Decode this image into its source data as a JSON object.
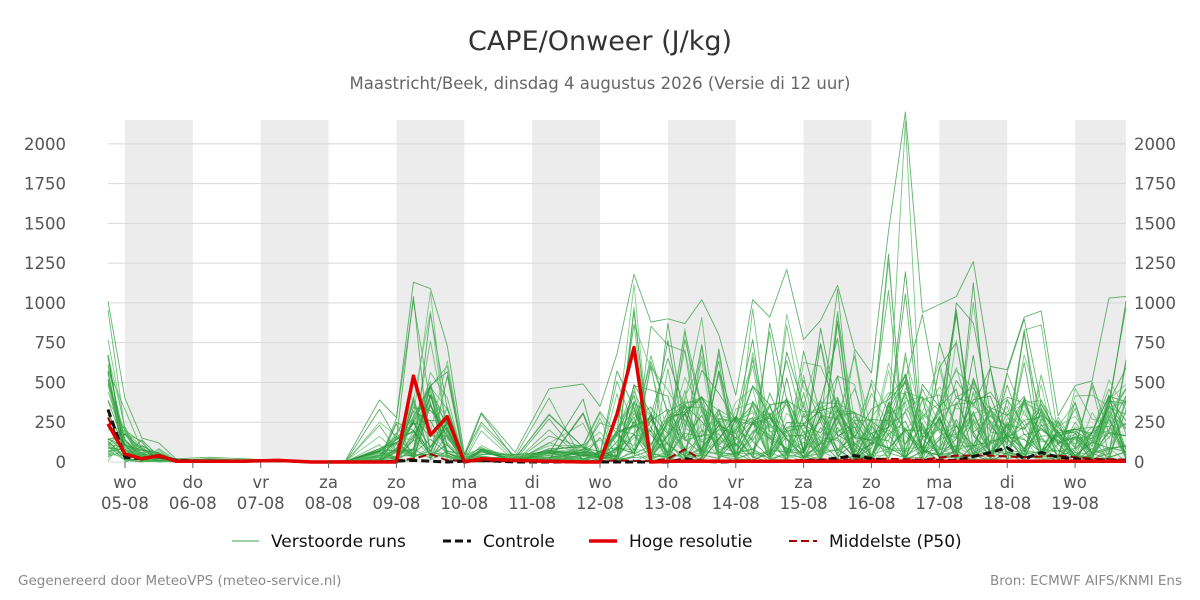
{
  "chart_data": {
    "type": "line",
    "title": "CAPE/Onweer (J/kg)",
    "subtitle": "Maastricht/Beek, dinsdag  4 augustus 2026 (Versie di 12 uur)",
    "ylim": [
      0,
      2200
    ],
    "yticks": [
      0,
      250,
      500,
      750,
      1000,
      1250,
      1500,
      1750,
      2000
    ],
    "x_range_days": [
      0,
      15
    ],
    "x_tick_days": [
      0.25,
      1.25,
      2.25,
      3.25,
      4.25,
      5.25,
      6.25,
      7.25,
      8.25,
      9.25,
      10.25,
      11.25,
      12.25,
      13.25,
      14.25
    ],
    "x_tick_weekdays": [
      "wo",
      "do",
      "vr",
      "za",
      "zo",
      "ma",
      "di",
      "wo",
      "do",
      "vr",
      "za",
      "zo",
      "ma",
      "di",
      "wo"
    ],
    "x_tick_dates": [
      "05-08",
      "06-08",
      "07-08",
      "08-08",
      "09-08",
      "10-08",
      "11-08",
      "12-08",
      "13-08",
      "14-08",
      "15-08",
      "16-08",
      "17-08",
      "18-08",
      "19-08"
    ],
    "shaded_day_ranges": [
      [
        0.25,
        1.25
      ],
      [
        2.25,
        3.25
      ],
      [
        4.25,
        5.25
      ],
      [
        6.25,
        7.25
      ],
      [
        8.25,
        9.25
      ],
      [
        10.25,
        11.25
      ],
      [
        12.25,
        13.25
      ],
      [
        14.25,
        15
      ]
    ],
    "grid": true,
    "legend": {
      "position": "bottom",
      "entries": [
        {
          "label": "Verstoorde runs",
          "color": "#3aa648",
          "style": "thin-solid"
        },
        {
          "label": "Controle",
          "color": "#111111",
          "style": "dashed"
        },
        {
          "label": "Hoge resolutie",
          "color": "#e00000",
          "style": "thick-solid"
        },
        {
          "label": "Middelste (P50)",
          "color": "#a00000",
          "style": "dashed"
        }
      ]
    },
    "series": [
      {
        "name": "Hoge resolutie",
        "color": "#e00000",
        "x": [
          0,
          0.25,
          0.5,
          0.75,
          1,
          1.5,
          2,
          2.5,
          3,
          3.5,
          4,
          4.25,
          4.5,
          4.75,
          5,
          5.25,
          5.5,
          6,
          6.5,
          7,
          7.25,
          7.5,
          7.75,
          8,
          8.25,
          8.5,
          9,
          9.5,
          10,
          10.5,
          11,
          11.5,
          12,
          12.5,
          13,
          13.5,
          14,
          14.5,
          15
        ],
        "y": [
          240,
          50,
          20,
          40,
          5,
          5,
          5,
          10,
          0,
          0,
          0,
          0,
          540,
          170,
          285,
          0,
          20,
          10,
          5,
          0,
          0,
          300,
          720,
          0,
          5,
          5,
          5,
          5,
          5,
          5,
          5,
          5,
          5,
          5,
          5,
          5,
          5,
          5,
          5
        ]
      },
      {
        "name": "Controle",
        "color": "#111111",
        "x": [
          0,
          0.25,
          0.5,
          0.75,
          1,
          1.5,
          2,
          2.5,
          3,
          3.5,
          4,
          4.5,
          5,
          5.5,
          6,
          6.5,
          7,
          7.5,
          8,
          8.25,
          8.5,
          8.75,
          9,
          9.5,
          10,
          10.5,
          11,
          11.5,
          12,
          12.5,
          13,
          13.25,
          13.5,
          13.75,
          14,
          14.5,
          15
        ],
        "y": [
          330,
          30,
          20,
          40,
          10,
          5,
          5,
          10,
          0,
          0,
          0,
          10,
          0,
          10,
          0,
          0,
          0,
          0,
          0,
          0,
          20,
          5,
          0,
          5,
          5,
          10,
          40,
          5,
          10,
          10,
          60,
          90,
          20,
          60,
          30,
          10,
          10
        ]
      },
      {
        "name": "Middelste (P50)",
        "color": "#a00000",
        "x": [
          0,
          0.25,
          0.5,
          0.75,
          1,
          1.5,
          2,
          2.5,
          3,
          3.5,
          4,
          4.5,
          4.75,
          5,
          5.5,
          6,
          6.5,
          7,
          7.5,
          8,
          8.25,
          8.5,
          8.75,
          9,
          9.5,
          10,
          10.5,
          11,
          11.5,
          12,
          12.5,
          13,
          13.5,
          14,
          14.5,
          15
        ],
        "y": [
          280,
          40,
          30,
          30,
          10,
          5,
          5,
          5,
          0,
          0,
          0,
          20,
          50,
          10,
          5,
          5,
          0,
          0,
          10,
          5,
          20,
          80,
          10,
          10,
          5,
          10,
          15,
          15,
          20,
          15,
          40,
          40,
          30,
          40,
          20,
          15
        ]
      }
    ],
    "ensemble": {
      "name": "Verstoorde runs",
      "color": "#3aa648",
      "member_count": 50,
      "x": [
        0,
        0.25,
        0.5,
        0.75,
        1,
        1.5,
        2,
        2.5,
        3,
        3.5,
        4,
        4.25,
        4.5,
        4.75,
        5,
        5.25,
        5.5,
        6,
        6.5,
        7,
        7.25,
        7.5,
        7.75,
        8,
        8.25,
        8.5,
        8.75,
        9,
        9.25,
        9.5,
        9.75,
        10,
        10.25,
        10.5,
        10.75,
        11,
        11.25,
        11.5,
        11.75,
        12,
        12.25,
        12.5,
        12.75,
        13,
        13.25,
        13.5,
        13.75,
        14,
        14.25,
        14.5,
        14.75,
        15
      ],
      "envelope_max": [
        1010,
        400,
        150,
        120,
        20,
        30,
        20,
        10,
        5,
        10,
        390,
        280,
        1130,
        1090,
        730,
        50,
        310,
        60,
        460,
        490,
        350,
        680,
        1180,
        880,
        900,
        870,
        1020,
        800,
        420,
        1020,
        910,
        1210,
        770,
        890,
        1110,
        710,
        560,
        1450,
        2200,
        940,
        990,
        1040,
        1260,
        600,
        580,
        910,
        950,
        290,
        480,
        510,
        1030,
        1040
      ],
      "envelope_mean": [
        500,
        150,
        60,
        40,
        10,
        10,
        8,
        5,
        2,
        2,
        60,
        120,
        300,
        350,
        250,
        20,
        60,
        20,
        60,
        80,
        50,
        150,
        350,
        250,
        250,
        300,
        300,
        250,
        200,
        300,
        280,
        300,
        250,
        280,
        300,
        250,
        200,
        300,
        400,
        350,
        300,
        350,
        380,
        250,
        220,
        300,
        300,
        150,
        150,
        200,
        300,
        350
      ],
      "seed": 7
    }
  },
  "footer": {
    "left": "Gegenereerd door MeteoVPS (meteo-service.nl)",
    "right": "Bron: ECMWF AIFS/KNMI Ens"
  }
}
